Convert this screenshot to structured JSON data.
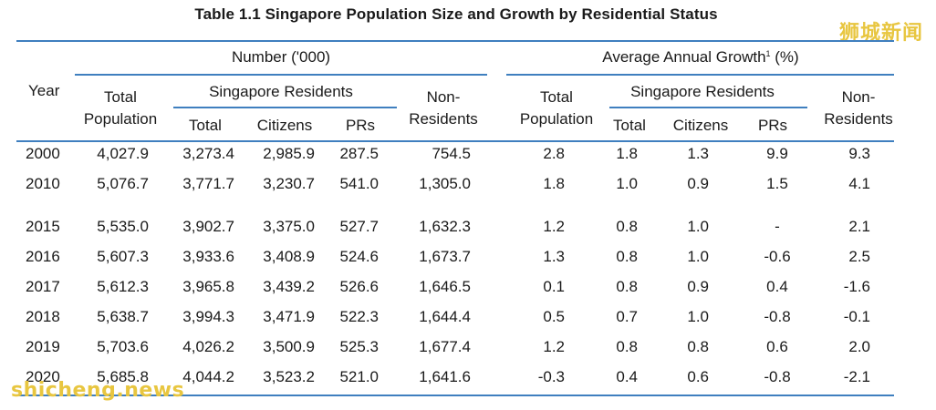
{
  "title": "Table 1.1  Singapore Population Size and Growth by Residential Status",
  "watermark_top": "狮城新闻",
  "watermark_bottom": "shicheng.news",
  "headers": {
    "year": "Year",
    "number_group": "Number ('000)",
    "growth_group": "Average Annual Growth",
    "growth_footnote": "1",
    "growth_unit": " (%)",
    "total_population_l1": "Total",
    "total_population_l2": "Population",
    "singapore_residents": "Singapore Residents",
    "non_residents_l1": "Non-",
    "non_residents_l2": "Residents",
    "total": "Total",
    "citizens": "Citizens",
    "prs": "PRs"
  },
  "rows": [
    {
      "year": "2000",
      "n_total_pop": "4,027.9",
      "n_res_total": "3,273.4",
      "n_citizens": "2,985.9",
      "n_prs": "287.5",
      "n_non_res": "754.5",
      "g_total_pop": "2.8",
      "g_res_total": "1.8",
      "g_citizens": "1.3",
      "g_prs": "9.9",
      "g_non_res": "9.3"
    },
    {
      "year": "2010",
      "n_total_pop": "5,076.7",
      "n_res_total": "3,771.7",
      "n_citizens": "3,230.7",
      "n_prs": "541.0",
      "n_non_res": "1,305.0",
      "g_total_pop": "1.8",
      "g_res_total": "1.0",
      "g_citizens": "0.9",
      "g_prs": "1.5",
      "g_non_res": "4.1"
    },
    {
      "year": "2015",
      "n_total_pop": "5,535.0",
      "n_res_total": "3,902.7",
      "n_citizens": "3,375.0",
      "n_prs": "527.7",
      "n_non_res": "1,632.3",
      "g_total_pop": "1.2",
      "g_res_total": "0.8",
      "g_citizens": "1.0",
      "g_prs": "-",
      "g_non_res": "2.1"
    },
    {
      "year": "2016",
      "n_total_pop": "5,607.3",
      "n_res_total": "3,933.6",
      "n_citizens": "3,408.9",
      "n_prs": "524.6",
      "n_non_res": "1,673.7",
      "g_total_pop": "1.3",
      "g_res_total": "0.8",
      "g_citizens": "1.0",
      "g_prs": "-0.6",
      "g_non_res": "2.5"
    },
    {
      "year": "2017",
      "n_total_pop": "5,612.3",
      "n_res_total": "3,965.8",
      "n_citizens": "3,439.2",
      "n_prs": "526.6",
      "n_non_res": "1,646.5",
      "g_total_pop": "0.1",
      "g_res_total": "0.8",
      "g_citizens": "0.9",
      "g_prs": "0.4",
      "g_non_res": "-1.6"
    },
    {
      "year": "2018",
      "n_total_pop": "5,638.7",
      "n_res_total": "3,994.3",
      "n_citizens": "3,471.9",
      "n_prs": "522.3",
      "n_non_res": "1,644.4",
      "g_total_pop": "0.5",
      "g_res_total": "0.7",
      "g_citizens": "1.0",
      "g_prs": "-0.8",
      "g_non_res": "-0.1"
    },
    {
      "year": "2019",
      "n_total_pop": "5,703.6",
      "n_res_total": "4,026.2",
      "n_citizens": "3,500.9",
      "n_prs": "525.3",
      "n_non_res": "1,677.4",
      "g_total_pop": "1.2",
      "g_res_total": "0.8",
      "g_citizens": "0.8",
      "g_prs": "0.6",
      "g_non_res": "2.0"
    },
    {
      "year": "2020",
      "n_total_pop": "5,685.8",
      "n_res_total": "4,044.2",
      "n_citizens": "3,523.2",
      "n_prs": "521.0",
      "n_non_res": "1,641.6",
      "g_total_pop": "-0.3",
      "g_res_total": "0.4",
      "g_citizens": "0.6",
      "g_prs": "-0.8",
      "g_non_res": "-2.1"
    }
  ]
}
